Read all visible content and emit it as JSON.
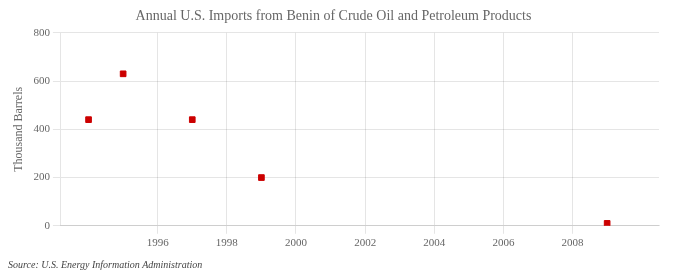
{
  "chart_data": {
    "type": "scatter",
    "title": "Annual U.S. Imports from Benin of Crude Oil and Petroleum Products",
    "ylabel": "Thousand Barrels",
    "annotations": [
      "Source: U.S. Energy Information Administration"
    ],
    "x": [
      1994,
      1995,
      1997,
      1999,
      2009
    ],
    "values": [
      440,
      630,
      440,
      200,
      10
    ],
    "color": "#cc0000",
    "marker": "square",
    "xlim": [
      1993.2,
      2010.5
    ],
    "ylim": [
      0,
      800
    ],
    "xticks": [
      1996,
      1998,
      2000,
      2002,
      2004,
      2006,
      2008
    ],
    "yticks": [
      0,
      200,
      400,
      600,
      800
    ],
    "grid": true
  }
}
